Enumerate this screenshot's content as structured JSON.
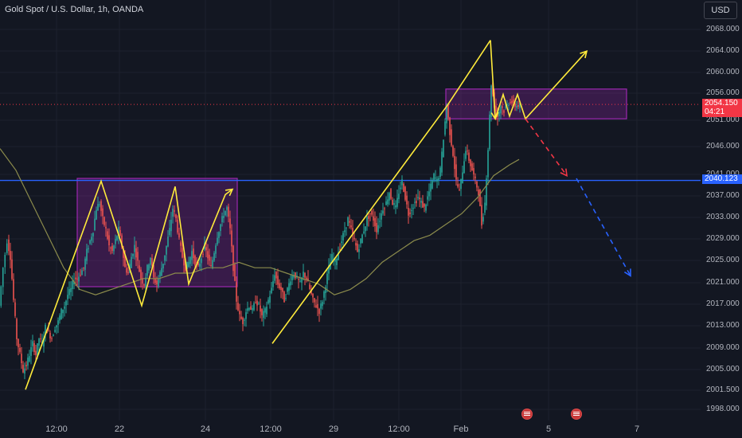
{
  "header": {
    "title": "Gold Spot / U.S. Dollar, 1h, OANDA",
    "currency_button": "USD"
  },
  "price_tags": {
    "current_price": "2054.150",
    "countdown": "04:21",
    "line_price": "2040.123"
  },
  "events": [
    {
      "icon": "us-flag-icon"
    },
    {
      "icon": "us-flag-icon"
    }
  ],
  "colors": {
    "background": "#131722",
    "up_candle": "#26a69a",
    "down_candle": "#ef5350",
    "drawing_yellow": "#ffeb3b",
    "range_box": "#9c27b0",
    "horizontal_line": "#2962ff",
    "ma_line": "#8b8b4c",
    "projection_red": "#f23645",
    "projection_blue": "#2962ff"
  },
  "chart_data": {
    "type": "candlestick",
    "title": "Gold Spot / U.S. Dollar, 1h, OANDA",
    "xlabel": "",
    "ylabel": "",
    "ylim": [
      1996,
      2071
    ],
    "y_ticks": [
      "2068.000",
      "2064.000",
      "2060.000",
      "2056.000",
      "2051.000",
      "2046.000",
      "2041.000",
      "2037.000",
      "2033.000",
      "2029.000",
      "2025.000",
      "2021.000",
      "2017.000",
      "2013.000",
      "2009.000",
      "2005.000",
      "2001.500",
      "1998.000"
    ],
    "x_ticks": [
      "12:00",
      "22",
      "24",
      "12:00",
      "29",
      "12:00",
      "Feb",
      "5",
      "7"
    ],
    "price_path": [
      [
        0,
        2017
      ],
      [
        5,
        2024
      ],
      [
        10,
        2029
      ],
      [
        14,
        2026
      ],
      [
        18,
        2018
      ],
      [
        22,
        2011
      ],
      [
        26,
        2008
      ],
      [
        30,
        2005
      ],
      [
        34,
        2006
      ],
      [
        38,
        2008
      ],
      [
        42,
        2010
      ],
      [
        46,
        2008
      ],
      [
        50,
        2011
      ],
      [
        54,
        2010
      ],
      [
        58,
        2013
      ],
      [
        62,
        2012
      ],
      [
        66,
        2011
      ],
      [
        70,
        2013
      ],
      [
        74,
        2014
      ],
      [
        78,
        2016
      ],
      [
        82,
        2017
      ],
      [
        86,
        2019
      ],
      [
        90,
        2020
      ],
      [
        94,
        2022
      ],
      [
        98,
        2022
      ],
      [
        102,
        2023
      ],
      [
        106,
        2024
      ],
      [
        110,
        2027
      ],
      [
        114,
        2029
      ],
      [
        118,
        2031
      ],
      [
        122,
        2035
      ],
      [
        126,
        2036
      ],
      [
        130,
        2033
      ],
      [
        134,
        2031
      ],
      [
        138,
        2028
      ],
      [
        142,
        2027
      ],
      [
        146,
        2029
      ],
      [
        150,
        2031
      ],
      [
        154,
        2028
      ],
      [
        158,
        2024
      ],
      [
        162,
        2023
      ],
      [
        166,
        2026
      ],
      [
        170,
        2028
      ],
      [
        174,
        2025
      ],
      [
        178,
        2022
      ],
      [
        182,
        2021
      ],
      [
        186,
        2024
      ],
      [
        190,
        2026
      ],
      [
        194,
        2022
      ],
      [
        198,
        2021
      ],
      [
        202,
        2023
      ],
      [
        206,
        2025
      ],
      [
        210,
        2028
      ],
      [
        214,
        2031
      ],
      [
        218,
        2035
      ],
      [
        222,
        2033
      ],
      [
        226,
        2029
      ],
      [
        230,
        2026
      ],
      [
        234,
        2024
      ],
      [
        238,
        2025
      ],
      [
        242,
        2027
      ],
      [
        246,
        2025
      ],
      [
        250,
        2024
      ],
      [
        254,
        2026
      ],
      [
        258,
        2028
      ],
      [
        262,
        2026
      ],
      [
        266,
        2024
      ],
      [
        270,
        2027
      ],
      [
        274,
        2030
      ],
      [
        278,
        2032
      ],
      [
        282,
        2034
      ],
      [
        286,
        2035
      ],
      [
        290,
        2031
      ],
      [
        294,
        2024
      ],
      [
        298,
        2018
      ],
      [
        302,
        2015
      ],
      [
        306,
        2014
      ],
      [
        310,
        2016
      ],
      [
        314,
        2017
      ],
      [
        318,
        2016
      ],
      [
        322,
        2018
      ],
      [
        326,
        2017
      ],
      [
        330,
        2015
      ],
      [
        334,
        2016
      ],
      [
        338,
        2018
      ],
      [
        342,
        2020
      ],
      [
        346,
        2023
      ],
      [
        350,
        2021
      ],
      [
        354,
        2020
      ],
      [
        358,
        2018
      ],
      [
        362,
        2020
      ],
      [
        366,
        2022
      ],
      [
        370,
        2023
      ],
      [
        374,
        2022
      ],
      [
        378,
        2021
      ],
      [
        382,
        2023
      ],
      [
        386,
        2022
      ],
      [
        390,
        2020
      ],
      [
        394,
        2018
      ],
      [
        398,
        2017
      ],
      [
        402,
        2016
      ],
      [
        406,
        2018
      ],
      [
        410,
        2021
      ],
      [
        414,
        2024
      ],
      [
        418,
        2026
      ],
      [
        422,
        2025
      ],
      [
        426,
        2027
      ],
      [
        430,
        2029
      ],
      [
        434,
        2031
      ],
      [
        438,
        2033
      ],
      [
        442,
        2031
      ],
      [
        446,
        2029
      ],
      [
        450,
        2027
      ],
      [
        454,
        2029
      ],
      [
        458,
        2031
      ],
      [
        462,
        2033
      ],
      [
        466,
        2034
      ],
      [
        470,
        2033
      ],
      [
        474,
        2031
      ],
      [
        478,
        2033
      ],
      [
        482,
        2035
      ],
      [
        486,
        2036
      ],
      [
        490,
        2038
      ],
      [
        494,
        2036
      ],
      [
        498,
        2035
      ],
      [
        502,
        2038
      ],
      [
        506,
        2040
      ],
      [
        510,
        2037
      ],
      [
        514,
        2034
      ],
      [
        518,
        2035
      ],
      [
        522,
        2036
      ],
      [
        526,
        2037
      ],
      [
        530,
        2036
      ],
      [
        534,
        2035
      ],
      [
        538,
        2037
      ],
      [
        542,
        2039
      ],
      [
        546,
        2041
      ],
      [
        550,
        2040
      ],
      [
        554,
        2042
      ],
      [
        558,
        2048
      ],
      [
        562,
        2054
      ],
      [
        566,
        2049
      ],
      [
        570,
        2045
      ],
      [
        574,
        2040
      ],
      [
        578,
        2038
      ],
      [
        582,
        2042
      ],
      [
        586,
        2046
      ],
      [
        590,
        2044
      ],
      [
        594,
        2042
      ],
      [
        598,
        2040
      ],
      [
        602,
        2038
      ],
      [
        606,
        2032
      ],
      [
        610,
        2036
      ],
      [
        614,
        2046
      ],
      [
        618,
        2058
      ],
      [
        622,
        2054
      ],
      [
        626,
        2052
      ],
      [
        630,
        2054
      ],
      [
        634,
        2053
      ],
      [
        638,
        2054
      ],
      [
        642,
        2055
      ],
      [
        646,
        2054
      ],
      [
        650,
        2054
      ],
      [
        654,
        2054
      ]
    ],
    "moving_average": [
      [
        0,
        2046
      ],
      [
        20,
        2042
      ],
      [
        40,
        2036
      ],
      [
        60,
        2030
      ],
      [
        80,
        2024
      ],
      [
        100,
        2020
      ],
      [
        120,
        2019
      ],
      [
        140,
        2020
      ],
      [
        160,
        2021
      ],
      [
        180,
        2022
      ],
      [
        200,
        2022
      ],
      [
        220,
        2023
      ],
      [
        240,
        2023
      ],
      [
        260,
        2024
      ],
      [
        280,
        2024
      ],
      [
        300,
        2025
      ],
      [
        320,
        2024
      ],
      [
        340,
        2024
      ],
      [
        360,
        2023
      ],
      [
        380,
        2022
      ],
      [
        400,
        2021
      ],
      [
        420,
        2019
      ],
      [
        440,
        2020
      ],
      [
        460,
        2022
      ],
      [
        480,
        2025
      ],
      [
        500,
        2027
      ],
      [
        520,
        2029
      ],
      [
        540,
        2030
      ],
      [
        560,
        2032
      ],
      [
        580,
        2034
      ],
      [
        600,
        2037
      ],
      [
        620,
        2041
      ],
      [
        640,
        2043
      ],
      [
        652,
        2044
      ]
    ],
    "horizontal_line": 2040.123,
    "current_price_line": 2054.15,
    "range_boxes": [
      {
        "x0": 97,
        "x1": 298,
        "y_low": 2020.5,
        "y_high": 2040.5
      },
      {
        "x0": 560,
        "x1": 787,
        "y_low": 2051.5,
        "y_high": 2057
      }
    ],
    "zigzag_up": [
      [
        32,
        2001.5
      ],
      [
        127,
        2040
      ],
      [
        178,
        2017
      ],
      [
        220,
        2039
      ],
      [
        237,
        2021
      ],
      [
        283,
        2037.5
      ],
      [
        292,
        2038.5
      ]
    ],
    "trend_leg_1": [
      [
        342,
        2010
      ],
      [
        562,
        2054
      ]
    ],
    "trend_leg_2": [
      [
        562,
        2054
      ],
      [
        616,
        2066
      ]
    ],
    "zigzag_top": [
      [
        616,
        2066
      ],
      [
        622,
        2051.5
      ],
      [
        632,
        2056
      ],
      [
        640,
        2052
      ],
      [
        650,
        2056
      ],
      [
        660,
        2051.5
      ],
      [
        737,
        2064
      ]
    ],
    "projection_red": [
      [
        660,
        2051.5
      ],
      [
        712,
        2041
      ]
    ],
    "projection_blue": [
      [
        724,
        2040.5
      ],
      [
        792,
        2022.5
      ]
    ]
  }
}
